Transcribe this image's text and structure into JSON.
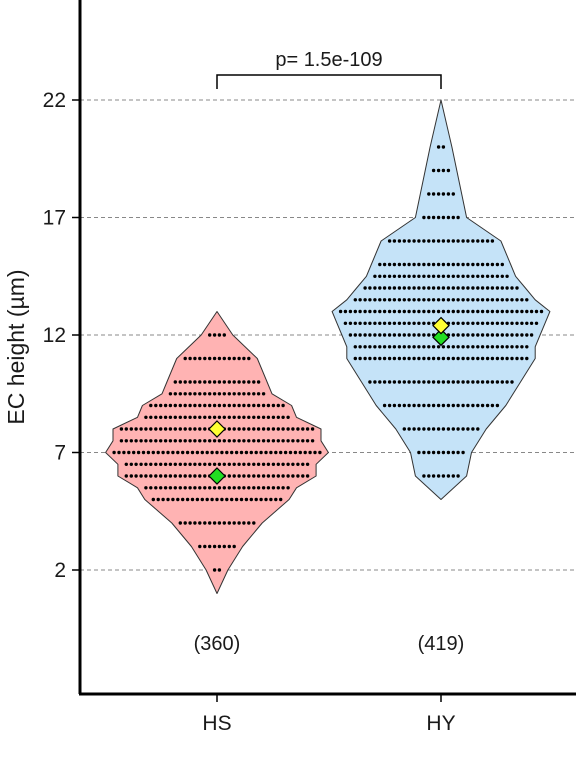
{
  "chart_data": {
    "type": "violin",
    "ylabel": "EC height (µm)",
    "ylim": [
      -2.6,
      26.5
    ],
    "yticks": [
      2,
      7,
      12,
      17,
      22
    ],
    "grid": "horizontal dashed",
    "categories": [
      "HS",
      "HY"
    ],
    "series": [
      {
        "category": "HS",
        "n": 360,
        "n_label": "(360)",
        "fill_color": "#ffb3b3",
        "mean": 8.0,
        "median": 6.0,
        "min": 1.0,
        "max": 13.0,
        "dot_rows": [
          {
            "y": 2,
            "count": 2
          },
          {
            "y": 3,
            "count": 8
          },
          {
            "y": 4,
            "count": 16
          },
          {
            "y": 5,
            "count": 27
          },
          {
            "y": 5.5,
            "count": 30
          },
          {
            "y": 6,
            "count": 38
          },
          {
            "y": 6.5,
            "count": 38
          },
          {
            "y": 7,
            "count": 43
          },
          {
            "y": 7.5,
            "count": 40
          },
          {
            "y": 8,
            "count": 40
          },
          {
            "y": 8.5,
            "count": 30
          },
          {
            "y": 9,
            "count": 28
          },
          {
            "y": 9.5,
            "count": 20
          },
          {
            "y": 10,
            "count": 18
          },
          {
            "y": 11,
            "count": 14
          },
          {
            "y": 12,
            "count": 4
          }
        ]
      },
      {
        "category": "HY",
        "n": 419,
        "n_label": "(419)",
        "fill_color": "#c5e3f8",
        "mean": 12.4,
        "median": 11.9,
        "min": 5.0,
        "max": 22.0,
        "dot_rows": [
          {
            "y": 6,
            "count": 8
          },
          {
            "y": 7,
            "count": 10
          },
          {
            "y": 8,
            "count": 16
          },
          {
            "y": 9,
            "count": 24
          },
          {
            "y": 10,
            "count": 30
          },
          {
            "y": 11,
            "count": 36
          },
          {
            "y": 11.5,
            "count": 36
          },
          {
            "y": 12,
            "count": 38
          },
          {
            "y": 12.5,
            "count": 40
          },
          {
            "y": 13,
            "count": 42
          },
          {
            "y": 13.5,
            "count": 36
          },
          {
            "y": 14,
            "count": 32
          },
          {
            "y": 14.5,
            "count": 28
          },
          {
            "y": 15,
            "count": 26
          },
          {
            "y": 16,
            "count": 22
          },
          {
            "y": 17,
            "count": 8
          },
          {
            "y": 18,
            "count": 6
          },
          {
            "y": 19,
            "count": 4
          },
          {
            "y": 20,
            "count": 2
          }
        ]
      }
    ],
    "mean_marker_color": "#ffff33",
    "median_marker_color": "#22dd22",
    "comparison": {
      "from": "HS",
      "to": "HY",
      "label": "p= 1.5e-109"
    }
  }
}
